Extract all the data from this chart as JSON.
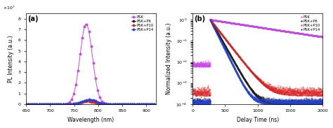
{
  "panel_a": {
    "title": "(a)",
    "xlabel": "Wavelength (nm)",
    "ylabel": "PL Intensity (a.u.)",
    "xlim": [
      650,
      920
    ],
    "ylim": [
      0,
      85000000.0
    ],
    "yticks": [
      0,
      10000000.0,
      20000000.0,
      30000000.0,
      40000000.0,
      50000000.0,
      60000000.0,
      70000000.0,
      80000000.0
    ],
    "peak_wl": 775,
    "peak_fwhm": 30,
    "psk_peak": 75000000.0,
    "p6_peak": 3200000.0,
    "p10_peak": 2500000.0,
    "p14_peak": 4200000.0,
    "colors": {
      "PSK": "#cc44ee",
      "PSK+P6": "#222222",
      "PSK+P10": "#dd2222",
      "PSK+P14": "#2244dd"
    },
    "legend": [
      "PSK",
      "PSK+P6",
      "PSK+P10",
      "PSK+P14"
    ]
  },
  "panel_b": {
    "title": "(b)",
    "xlabel": "Delay Time (ns)",
    "ylabel": "Normalized Intensity (a.u.)",
    "xlim": [
      0,
      2000
    ],
    "colors": {
      "PSK": "#cc44ee",
      "PSK+P6": "#222222",
      "PSK+P10": "#dd2222",
      "PSK+P14": "#2244dd"
    },
    "legend": [
      "PSK",
      "PSK+P6",
      "PSK+P10",
      "PSK+P14"
    ],
    "tau_psk": 900,
    "tau_p6": 80,
    "tau_p10": 110,
    "tau_p14": 70,
    "noise_psk": 0.006,
    "noise_p6": 0.0001,
    "noise_p10": 0.00025,
    "noise_p14": 0.0001,
    "t_start": 270,
    "bg_color": "#ffffff"
  }
}
